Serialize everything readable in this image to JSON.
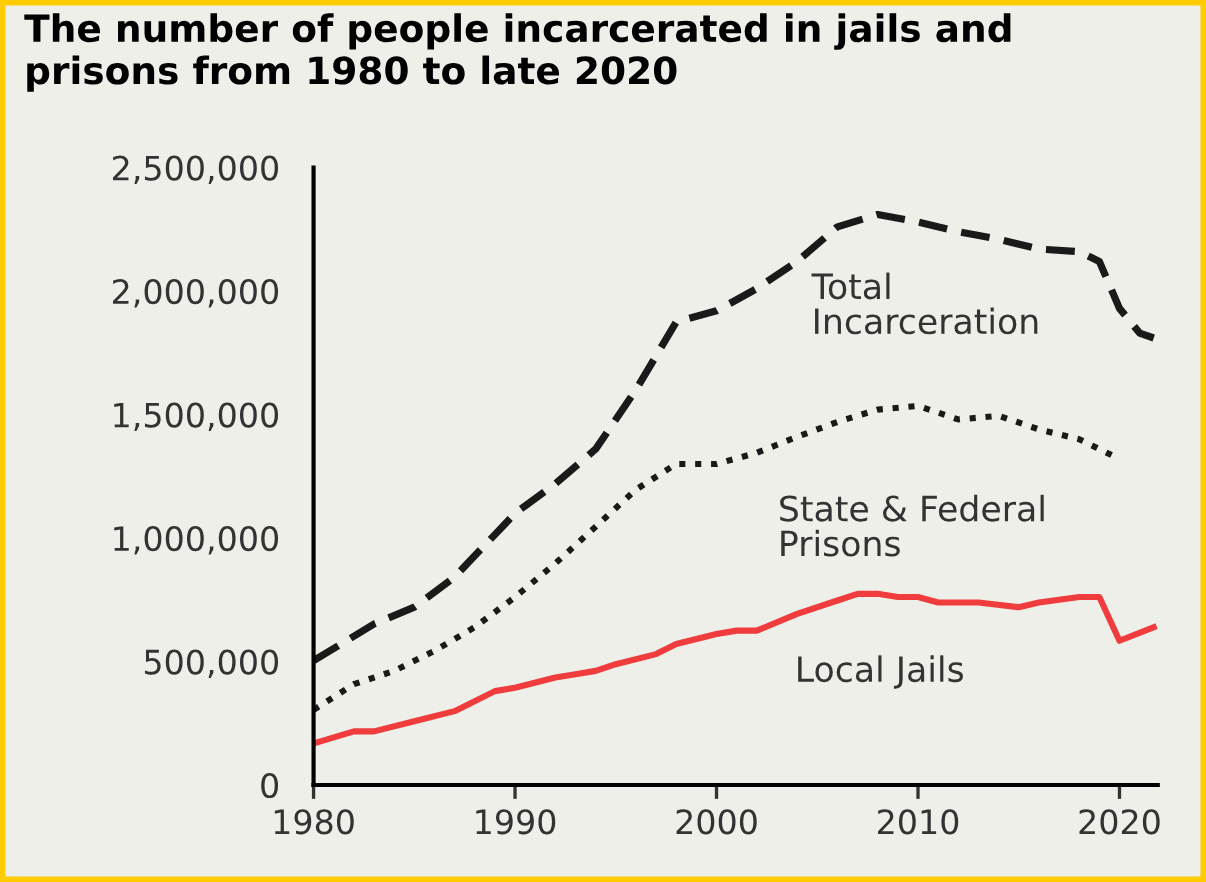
{
  "chart_data": {
    "type": "line",
    "title": "The number of people incarcerated in jails and\nprisons from 1980 to late 2020",
    "xlim": [
      1980,
      2021.9
    ],
    "xticks": [
      1980,
      1990,
      2000,
      2010,
      2020
    ],
    "ylim": [
      0,
      2500000
    ],
    "yticks": [
      {
        "value": 0,
        "label": "0"
      },
      {
        "value": 500000,
        "label": "500,000"
      },
      {
        "value": 1000000,
        "label": "1,000,000"
      },
      {
        "value": 1500000,
        "label": "1,500,000"
      },
      {
        "value": 2000000,
        "label": "2,000,000"
      },
      {
        "value": 2500000,
        "label": "2,500,000"
      }
    ],
    "grid": false,
    "legend": false,
    "series": [
      {
        "name": "Total\nIncarceration",
        "color": "#1a1a1a",
        "line_style": "dashed",
        "x": [
          1980,
          1983,
          1985,
          1987,
          1990,
          1992,
          1994,
          1996,
          1998,
          2000,
          2002,
          2004,
          2006,
          2008,
          2010,
          2012,
          2014,
          2016,
          2018,
          2019,
          2020,
          2021,
          2021.7
        ],
        "values": [
          503000,
          652000,
          720000,
          842000,
          1100000,
          1220000,
          1360000,
          1600000,
          1875000,
          1920000,
          2010000,
          2120000,
          2260000,
          2310000,
          2280000,
          2240000,
          2210000,
          2170000,
          2160000,
          2120000,
          1930000,
          1830000,
          1810000
        ]
      },
      {
        "name": "State & Federal\nPrisons",
        "color": "#1a1a1a",
        "line_style": "dotted",
        "x": [
          1980,
          1982,
          1984,
          1986,
          1988,
          1990,
          1992,
          1994,
          1996,
          1998,
          2000,
          2002,
          2004,
          2006,
          2008,
          2010,
          2012,
          2014,
          2016,
          2018,
          2020
        ],
        "values": [
          304000,
          408000,
          462000,
          543000,
          639000,
          761000,
          897000,
          1046000,
          1196000,
          1300000,
          1300000,
          1345000,
          1410000,
          1470000,
          1520000,
          1535000,
          1480000,
          1495000,
          1440000,
          1400000,
          1320000
        ]
      },
      {
        "name": "Local Jails",
        "color": "#f03c3c",
        "line_style": "solid",
        "x": [
          1980,
          1982,
          1983,
          1985,
          1987,
          1989,
          1990,
          1992,
          1993,
          1994,
          1995,
          1997,
          1998,
          2000,
          2001,
          2002,
          2004,
          2006,
          2007,
          2008,
          2009,
          2010,
          2011,
          2013,
          2015,
          2016,
          2018,
          2019,
          2020,
          2021.7
        ],
        "values": [
          168000,
          217000,
          217000,
          258000,
          299000,
          380000,
          394000,
          435000,
          448000,
          462000,
          489000,
          530000,
          571000,
          611000,
          625000,
          625000,
          693000,
          747000,
          774000,
          774000,
          761000,
          761000,
          739000,
          739000,
          720000,
          739000,
          761000,
          761000,
          584000,
          639000
        ]
      }
    ]
  }
}
